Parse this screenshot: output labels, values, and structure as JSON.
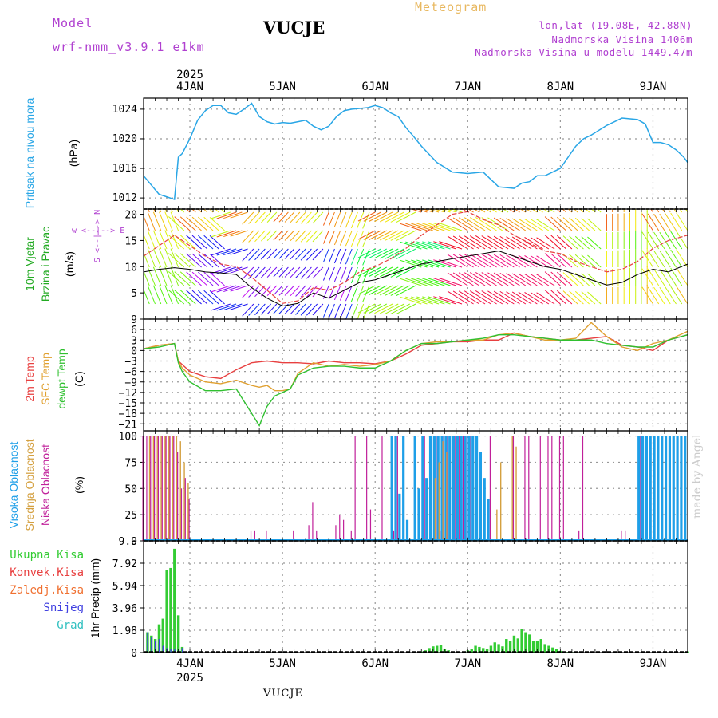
{
  "header": {
    "model_label": "Model",
    "model_run": "wrf-nmm_v3.9.1 e1km",
    "station": "VUCJE",
    "product": "Meteogram",
    "coords": "lon,lat (19.08E, 42.88N)",
    "elevation": "Nadmorska Visina 1406m",
    "model_elevation": "Nadmorska Visina u modelu 1449.47m"
  },
  "footer": {
    "station": "VUCJE",
    "credit": "made by Angel"
  },
  "colors": {
    "pressure": "#29a6e6",
    "temp2m": "#e84040",
    "sfc_temp": "#e0a030",
    "dewpoint": "#30c030",
    "high_cloud": "#1e9fe8",
    "mid_cloud": "#d4a040",
    "low_cloud": "#c0209a",
    "precip_total": "#33cc33",
    "precip_snow": "#4040e0"
  },
  "chart_data": [
    {
      "type": "line",
      "name": "pressure",
      "ylabel_lines": [
        "Pritisak na nivou mora",
        "(hPa)"
      ],
      "yticks": [
        1012,
        1016,
        1020,
        1024
      ],
      "ylim": [
        1010.5,
        1025.5
      ],
      "xlim": [
        0,
        141
      ],
      "x": [
        0,
        4,
        8,
        9,
        10,
        12,
        14,
        16,
        18,
        20,
        22,
        24,
        26,
        28,
        30,
        32,
        34,
        36,
        38,
        40,
        42,
        44,
        46,
        48,
        50,
        52,
        54,
        56,
        58,
        60,
        62,
        64,
        66,
        68,
        70,
        72,
        76,
        80,
        84,
        88,
        92,
        96,
        98,
        100,
        102,
        104,
        106,
        108,
        110,
        112,
        114,
        116,
        120,
        124,
        128,
        130,
        132,
        134,
        136,
        138,
        140,
        141
      ],
      "values": [
        1015,
        1012.5,
        1011.8,
        1017.5,
        1018,
        1020,
        1022.5,
        1023.8,
        1024.5,
        1024.5,
        1023.5,
        1023.3,
        1024,
        1024.8,
        1023,
        1022.3,
        1022,
        1022.2,
        1022.1,
        1022.3,
        1022.5,
        1021.7,
        1021.2,
        1021.7,
        1023,
        1023.8,
        1024,
        1024.1,
        1024.2,
        1024.5,
        1024.2,
        1023.5,
        1023,
        1021.5,
        1020.3,
        1019,
        1016.8,
        1015.5,
        1015.3,
        1015.5,
        1013.5,
        1013.3,
        1014,
        1014.2,
        1015,
        1015,
        1015.5,
        1016,
        1017.5,
        1019,
        1020,
        1020.5,
        1021.8,
        1022.8,
        1022.6,
        1022,
        1019.5,
        1019.5,
        1019.2,
        1018.5,
        1017.5,
        1016.8
      ]
    },
    {
      "type": "line",
      "name": "wind",
      "ylabel_lines": [
        "10m Vjetar",
        "Brzina i Pravac",
        "(m/s)"
      ],
      "compass": [
        "w",
        "<--|-->",
        "E",
        "S",
        "<--|-->",
        "N"
      ],
      "yticks": [
        5,
        10,
        15,
        20
      ],
      "ylim": [
        0,
        21
      ],
      "xlim": [
        0,
        141
      ],
      "series": [
        {
          "role": "speed",
          "x": [
            0,
            4,
            8,
            12,
            16,
            20,
            24,
            28,
            32,
            36,
            40,
            44,
            48,
            52,
            56,
            60,
            64,
            68,
            72,
            76,
            80,
            84,
            88,
            92,
            96,
            100,
            104,
            108,
            112,
            116,
            120,
            124,
            128,
            132,
            136,
            141
          ],
          "values": [
            9,
            9.5,
            9.8,
            9.5,
            9,
            8.8,
            8.5,
            6,
            4,
            2.5,
            3,
            5,
            4,
            5.5,
            7,
            7.5,
            8.5,
            9.5,
            10.5,
            11,
            11.5,
            12,
            12.5,
            13,
            12,
            11,
            10,
            9.5,
            8.5,
            7.5,
            6.5,
            7,
            8.5,
            9.5,
            9,
            10.5
          ]
        },
        {
          "role": "gust",
          "x": [
            0,
            4,
            8,
            12,
            16,
            20,
            24,
            28,
            32,
            36,
            40,
            44,
            48,
            52,
            56,
            60,
            64,
            68,
            72,
            76,
            80,
            84,
            88,
            92,
            96,
            100,
            104,
            108,
            112,
            116,
            120,
            124,
            128,
            132,
            136,
            141
          ],
          "values": [
            12,
            14,
            16,
            14,
            12,
            10.5,
            10,
            8,
            5.5,
            3,
            3.5,
            6,
            5.5,
            7,
            9,
            10,
            11.5,
            13.5,
            16,
            18,
            20,
            20.5,
            19,
            18,
            16,
            14.5,
            13,
            12.5,
            11,
            10,
            9,
            9.5,
            11,
            13.5,
            15,
            16
          ]
        }
      ]
    },
    {
      "type": "line",
      "name": "temperature",
      "ylabel_lines": [
        "2m Temp",
        "SFC Temp",
        "dewpt Temp",
        "(C)"
      ],
      "yticks": [
        -21,
        -18,
        -15,
        -12,
        -9,
        -6,
        -3,
        0,
        3,
        6,
        9
      ],
      "ylim": [
        -23,
        9
      ],
      "xlim": [
        0,
        141
      ],
      "series": [
        {
          "name": "2m Temp",
          "x": [
            0,
            4,
            8,
            9,
            10,
            12,
            16,
            20,
            24,
            28,
            32,
            36,
            40,
            44,
            48,
            52,
            56,
            60,
            64,
            68,
            72,
            76,
            80,
            84,
            88,
            92,
            96,
            100,
            104,
            108,
            112,
            116,
            120,
            124,
            128,
            132,
            136,
            141
          ],
          "values": [
            0.5,
            1.5,
            2,
            -3,
            -4,
            -6,
            -7.5,
            -8,
            -5.5,
            -3.5,
            -3,
            -3.5,
            -3.5,
            -3.8,
            -3,
            -3.5,
            -3.5,
            -3.8,
            -3,
            -1,
            1.5,
            2,
            2.5,
            2.5,
            3,
            3,
            5,
            4,
            3.5,
            3,
            3,
            3.5,
            4,
            1.5,
            1,
            0,
            3,
            4.5
          ]
        },
        {
          "name": "SFC Temp",
          "x": [
            0,
            4,
            8,
            9,
            10,
            12,
            16,
            20,
            24,
            28,
            30,
            32,
            34,
            36,
            38,
            40,
            44,
            48,
            52,
            56,
            60,
            64,
            68,
            72,
            76,
            80,
            84,
            88,
            92,
            96,
            100,
            104,
            108,
            112,
            116,
            120,
            124,
            128,
            132,
            136,
            141
          ],
          "values": [
            0.5,
            1.5,
            2,
            -3,
            -5,
            -7,
            -9,
            -9.5,
            -8.5,
            -10,
            -10.5,
            -10,
            -11.5,
            -11.5,
            -11,
            -6.5,
            -3.5,
            -4.5,
            -4,
            -4.5,
            -4,
            -3,
            0,
            2,
            2.5,
            2.5,
            3,
            3,
            4.5,
            5,
            4,
            3,
            3,
            3.5,
            8,
            4,
            1,
            0,
            2,
            3,
            5.5
          ]
        },
        {
          "name": "dewpt Temp",
          "x": [
            0,
            4,
            8,
            9,
            10,
            12,
            16,
            20,
            24,
            28,
            30,
            32,
            34,
            36,
            38,
            40,
            44,
            48,
            52,
            56,
            60,
            64,
            68,
            72,
            76,
            80,
            84,
            88,
            92,
            96,
            100,
            104,
            108,
            112,
            116,
            120,
            124,
            128,
            132,
            136,
            141
          ],
          "values": [
            0.5,
            1,
            2,
            -3.5,
            -6,
            -9,
            -11.5,
            -11.5,
            -11,
            -18,
            -21.5,
            -16,
            -13,
            -12,
            -11,
            -7,
            -5,
            -4.5,
            -4.5,
            -5,
            -5,
            -3,
            0,
            2,
            2,
            2.5,
            3,
            3.5,
            4.5,
            4.5,
            4,
            3.5,
            3,
            3,
            3,
            2,
            1.5,
            1,
            1,
            3,
            4.5
          ]
        }
      ]
    },
    {
      "type": "bar",
      "name": "cloud_cover",
      "ylabel_lines": [
        "Visoka Oblacnost",
        "Srednja Oblacnost",
        "Niska Oblacnost",
        "(%)"
      ],
      "yticks": [
        0,
        25,
        50,
        75,
        100
      ],
      "ylim": [
        0,
        100
      ],
      "xlim": [
        0,
        141
      ],
      "series": [
        {
          "name": "Visoka Oblacnost",
          "x": [
            64,
            65,
            66,
            67,
            68,
            70,
            71,
            72,
            73,
            74,
            75,
            76,
            77,
            78,
            79,
            80,
            81,
            82,
            83,
            84,
            85,
            86,
            87,
            88,
            89,
            128,
            129,
            130,
            131,
            132,
            133,
            134,
            135,
            136,
            137,
            138,
            139,
            140
          ],
          "values": [
            100,
            100,
            45,
            100,
            20,
            100,
            50,
            100,
            60,
            100,
            100,
            100,
            100,
            100,
            100,
            100,
            100,
            100,
            100,
            100,
            100,
            100,
            85,
            60,
            40,
            100,
            100,
            100,
            100,
            100,
            100,
            100,
            100,
            100,
            100,
            100,
            100,
            100
          ]
        },
        {
          "name": "Srednja Oblacnost",
          "x": [
            1,
            2,
            3,
            4,
            5,
            6,
            7,
            8,
            9,
            10,
            11,
            75,
            76,
            77,
            78,
            91,
            92,
            95,
            96
          ],
          "values": [
            100,
            100,
            100,
            100,
            100,
            100,
            100,
            100,
            95,
            75,
            55,
            60,
            75,
            95,
            85,
            30,
            75,
            100,
            90
          ]
        },
        {
          "name": "Niska Oblacnost",
          "x": [
            0,
            1,
            2,
            3,
            4,
            5,
            6,
            7,
            8,
            9,
            10,
            11,
            12,
            28,
            29,
            32,
            39,
            43,
            44,
            45,
            50,
            51,
            52,
            54,
            55,
            58,
            59,
            62,
            65,
            66,
            73,
            76,
            77,
            78,
            79,
            81,
            82,
            83,
            84,
            85,
            90,
            96,
            99,
            100,
            103,
            105,
            106,
            108,
            109,
            113,
            114,
            124,
            125,
            129
          ],
          "values": [
            100,
            100,
            100,
            100,
            100,
            100,
            100,
            100,
            100,
            85,
            50,
            60,
            40,
            10,
            10,
            10,
            10,
            15,
            37,
            10,
            15,
            25,
            20,
            10,
            100,
            100,
            30,
            100,
            10,
            100,
            100,
            100,
            10,
            100,
            100,
            100,
            100,
            100,
            100,
            100,
            100,
            100,
            100,
            100,
            100,
            100,
            100,
            100,
            100,
            10,
            100,
            10,
            10,
            100
          ]
        }
      ]
    },
    {
      "type": "bar",
      "name": "precipitation",
      "legend": [
        "Ukupna Kisa",
        "Konvek.Kisa",
        "Zaledj.Kisa",
        "Snijeg",
        "Grad"
      ],
      "ylabel_lines": [
        "1hr Precip (mm)"
      ],
      "yticks": [
        0,
        1.98,
        3.96,
        5.94,
        7.92,
        9.9
      ],
      "ylim": [
        0,
        9.9
      ],
      "xlim": [
        0,
        141
      ],
      "series": [
        {
          "name": "Ukupna Kisa",
          "x": [
            1,
            2,
            3,
            4,
            5,
            6,
            7,
            8,
            9,
            10,
            72,
            73,
            74,
            75,
            76,
            77,
            78,
            79,
            80,
            84,
            85,
            86,
            87,
            88,
            89,
            90,
            91,
            92,
            93,
            94,
            95,
            96,
            97,
            98,
            99,
            100,
            101,
            102,
            103,
            104,
            105,
            106,
            107,
            108,
            109,
            110,
            111,
            112,
            113,
            114,
            115,
            116,
            117,
            118,
            119,
            120,
            121,
            122,
            123,
            124,
            125,
            126,
            127,
            128,
            140,
            141
          ],
          "values": [
            1.8,
            1.5,
            1.2,
            2.5,
            3,
            7.3,
            7.5,
            9.2,
            3.3,
            0.5,
            0.1,
            0.2,
            0.4,
            0.55,
            0.6,
            0.7,
            0.3,
            0.2,
            0.1,
            0.2,
            0.3,
            0.6,
            0.5,
            0.4,
            0.3,
            0.6,
            0.9,
            0.75,
            0.55,
            1.2,
            1,
            1.5,
            1.25,
            2.1,
            1.8,
            1.6,
            1.05,
            1,
            1.2,
            0.75,
            0.6,
            0.45,
            0.35,
            0.15,
            0.08,
            0.06,
            0.05,
            0.04,
            0.04,
            0.03,
            0.03,
            0.02,
            0.02,
            0.02,
            0.02,
            0.02,
            0.02,
            0.02,
            0.03,
            0.02,
            0.02,
            0.02,
            0.02,
            0.02,
            0.05,
            0.1
          ]
        },
        {
          "name": "Snijeg",
          "x": [
            1,
            2,
            3,
            4,
            5,
            6,
            7,
            8,
            9,
            10
          ],
          "values": [
            1.8,
            1.4,
            1,
            1.2,
            0.6,
            0.4,
            0.3,
            0.3,
            0.2,
            0.4
          ]
        }
      ]
    }
  ],
  "x_axis": {
    "year": "2025",
    "day_labels": [
      "4JAN",
      "5JAN",
      "6JAN",
      "7JAN",
      "8JAN",
      "9JAN"
    ],
    "day_hours": [
      12,
      36,
      60,
      84,
      108,
      132
    ]
  }
}
